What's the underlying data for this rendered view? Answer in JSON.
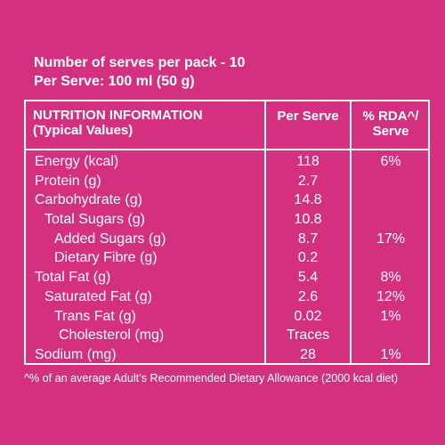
{
  "serves": {
    "line1": "Number of serves per pack - 10",
    "line2": "Per Serve: 100 ml (50 g)"
  },
  "table": {
    "header": {
      "title_line1": "NUTRITION INFORMATION",
      "title_line2": "(Typical Values)",
      "per_serve": "Per Serve",
      "rda_line1": "% RDA^/",
      "rda_line2": "Serve"
    },
    "rows": [
      {
        "name": "Energy (kcal)",
        "value": "118",
        "rda": "6%"
      },
      {
        "name": "Protein (g)",
        "value": "2.7",
        "rda": ""
      },
      {
        "name": "Carbohydrate (g)",
        "value": "14.8",
        "rda": ""
      },
      {
        "name": "Total Sugars (g)",
        "value": "10.8",
        "rda": ""
      },
      {
        "name": "Added Sugars (g)",
        "value": "8.7",
        "rda": "17%"
      },
      {
        "name": "Dietary Fibre (g)",
        "value": "0.2",
        "rda": ""
      },
      {
        "name": "Total Fat (g)",
        "value": "5.4",
        "rda": "8%"
      },
      {
        "name": "Saturated Fat (g)",
        "value": "2.6",
        "rda": "12%"
      },
      {
        "name": "Trans Fat (g)",
        "value": "0.02",
        "rda": "1%"
      },
      {
        "name": "Cholesterol (mg)",
        "value": "Traces",
        "rda": ""
      },
      {
        "name": "Sodium (mg)",
        "value": "28",
        "rda": "1%"
      }
    ]
  },
  "footnote": "^% of an average Adult’s Recommended Dietary Allowance (2000 kcal diet)",
  "colors": {
    "background": "#d4307f",
    "text": "#ffffff"
  }
}
